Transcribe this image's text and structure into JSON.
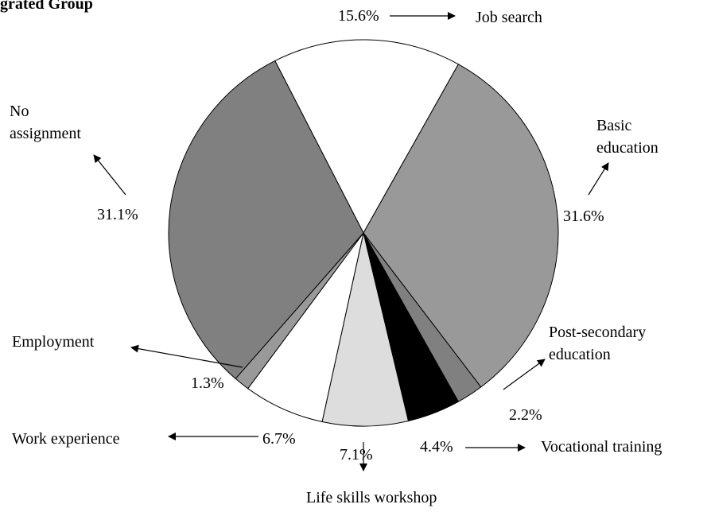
{
  "chart_data": {
    "type": "pie",
    "title": "grated Group",
    "categories": [
      "Job search",
      "Basic education",
      "Post-secondary education",
      "Vocational training",
      "Life skills workshop",
      "Work experience",
      "Employment",
      "No assignment"
    ],
    "values": [
      15.6,
      31.6,
      2.2,
      4.4,
      7.1,
      6.7,
      1.3,
      31.1
    ],
    "value_labels": [
      "15.6%",
      "31.6%",
      "2.2%",
      "4.4%",
      "7.1%",
      "6.7%",
      "1.3%",
      "31.1%"
    ],
    "colors": [
      "#ffffff",
      "#999999",
      "#808080",
      "#000000",
      "#dddddd",
      "#ffffff",
      "#999999",
      "#808080"
    ]
  }
}
